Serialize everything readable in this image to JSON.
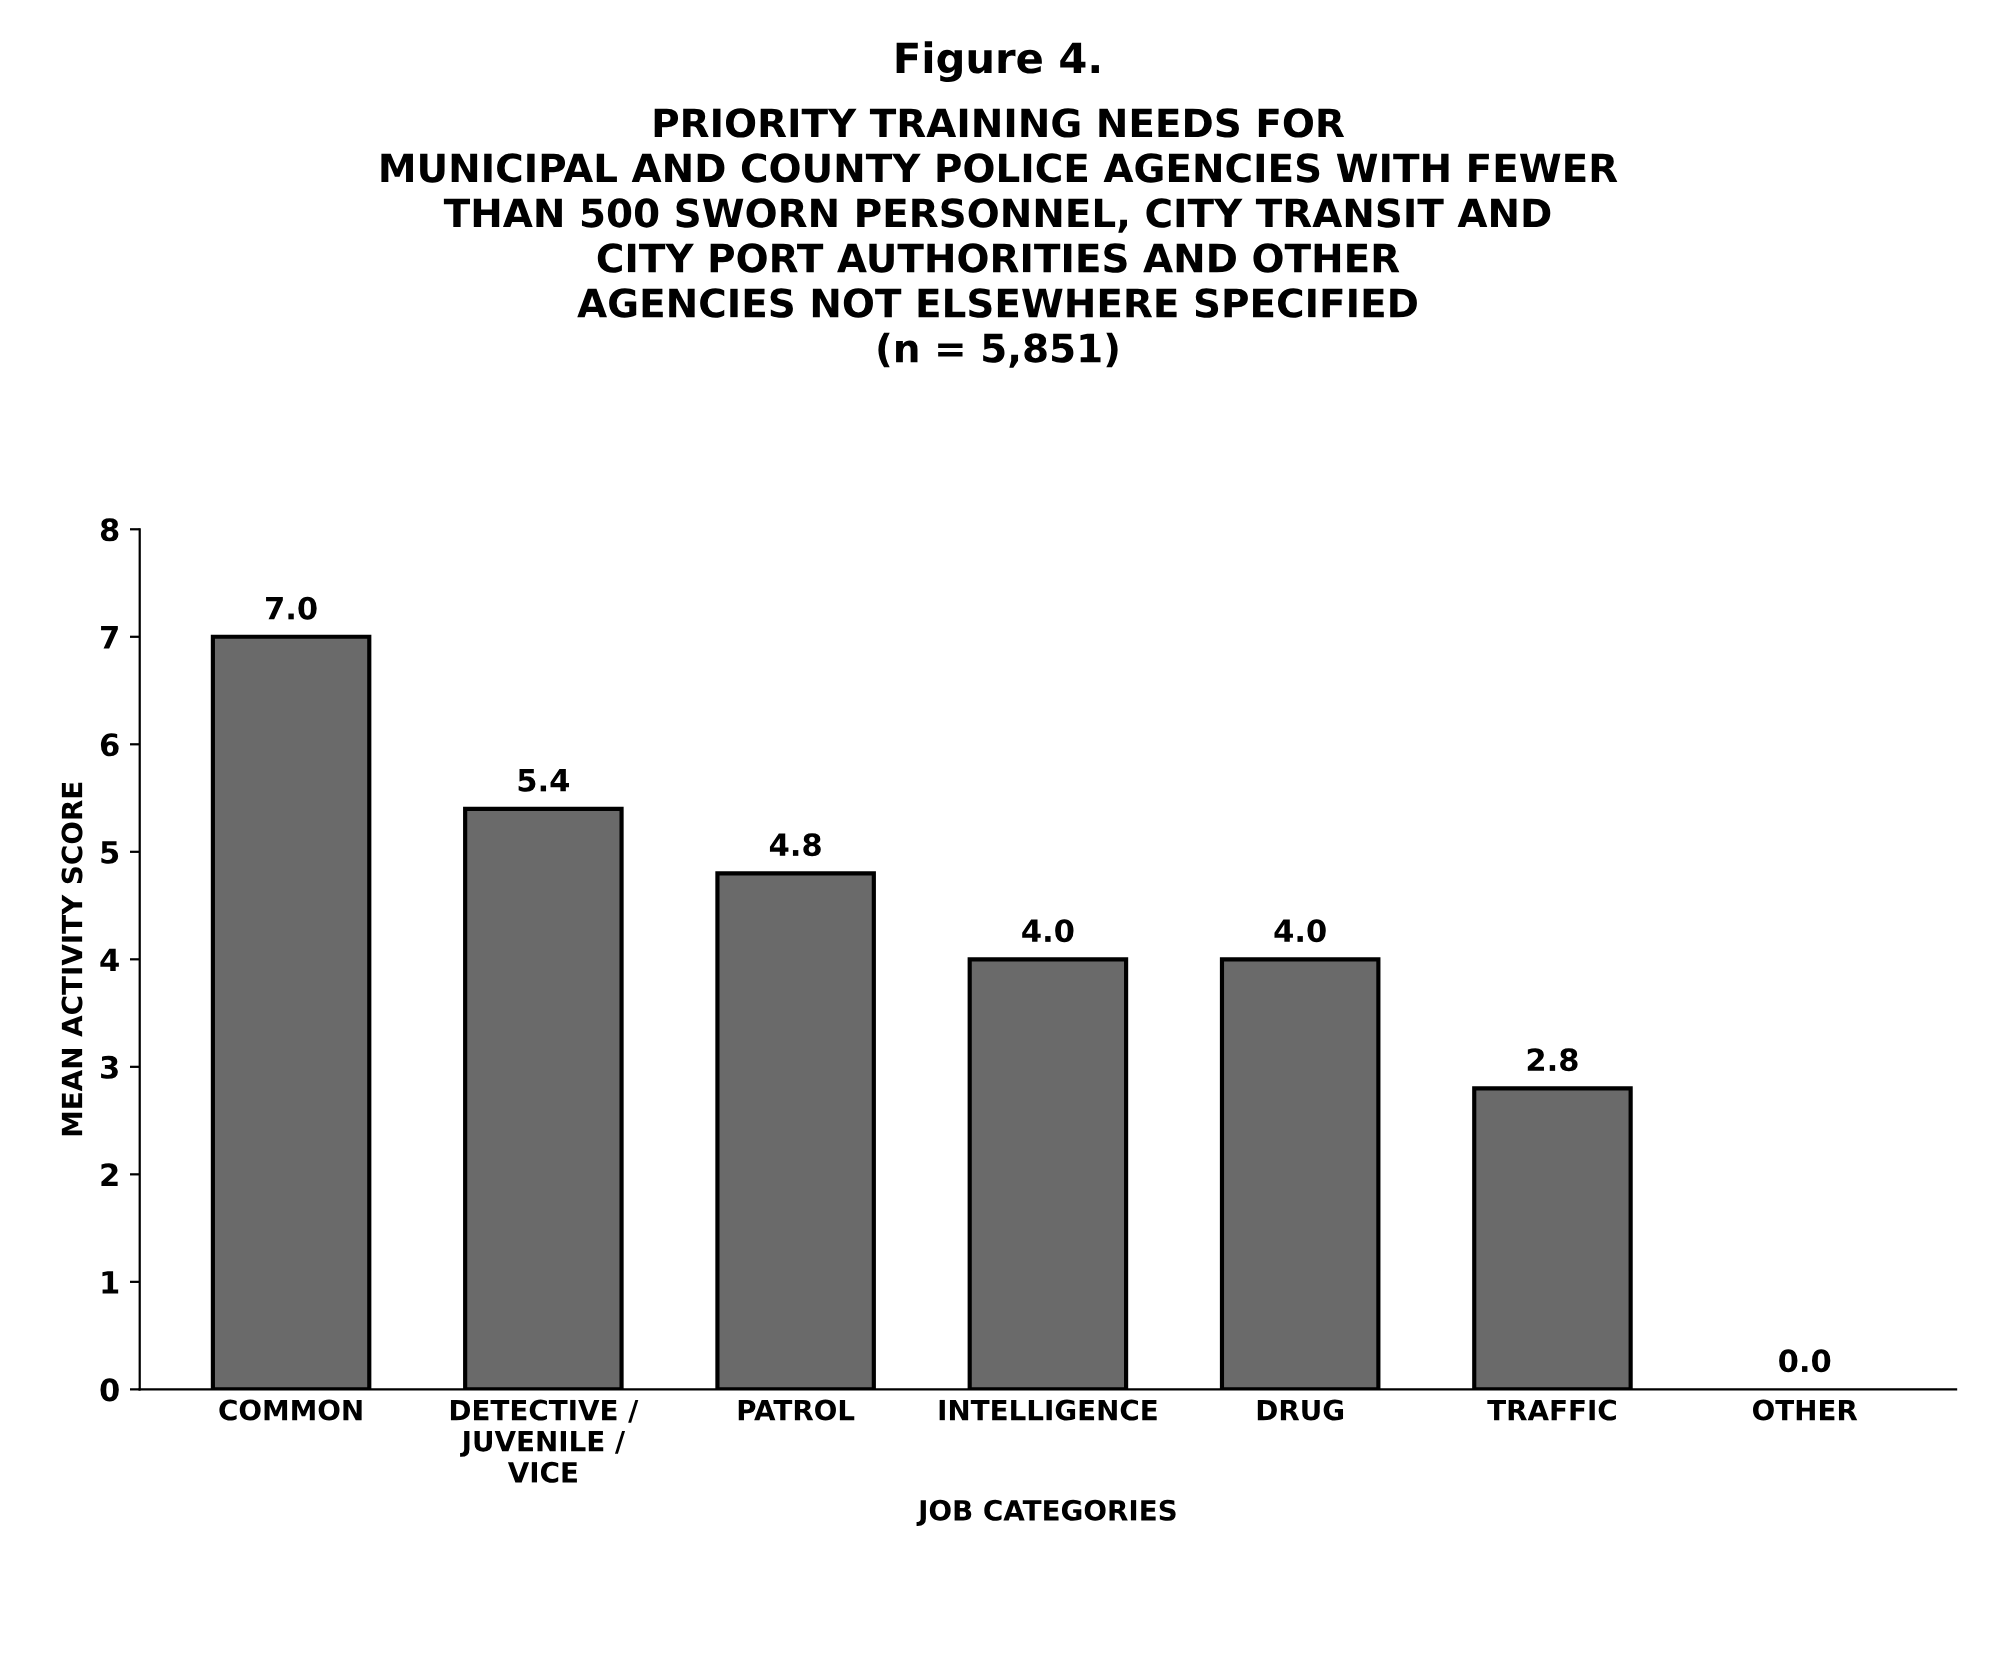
{
  "chart_data": {
    "type": "bar",
    "title": "Figure 4.",
    "subtitle": "PRIORITY TRAINING NEEDS FOR\nMUNICIPAL AND COUNTY POLICE AGENCIES WITH FEWER\nTHAN 500 SWORN PERSONNEL, CITY TRANSIT AND\nCITY PORT AUTHORITIES AND OTHER\nAGENCIES NOT ELSEWHERE SPECIFIED\n(n = 5,851)",
    "xlabel": "JOB CATEGORIES",
    "ylabel": "MEAN ACTIVITY SCORE",
    "categories": [
      "COMMON",
      "DETECTIVE /\nJUVENILE /\nVICE",
      "PATROL",
      "INTELLIGENCE",
      "DRUG",
      "TRAFFIC",
      "OTHER"
    ],
    "values": [
      7.0,
      5.4,
      4.8,
      4.0,
      4.0,
      2.8,
      0.0
    ],
    "value_labels": [
      "7.0",
      "5.4",
      "4.8",
      "4.0",
      "4.0",
      "2.8",
      "0.0"
    ],
    "color": "#6a6a6a",
    "ylim": [
      0,
      8
    ],
    "yticks": [
      0,
      1,
      2,
      3,
      4,
      5,
      6,
      7,
      8
    ],
    "grid": false,
    "legend": false
  }
}
